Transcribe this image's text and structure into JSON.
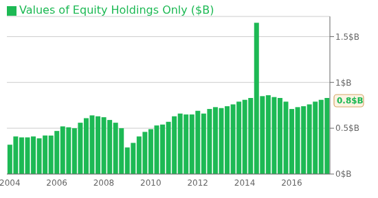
{
  "chart_data": {
    "type": "bar",
    "categories": [
      "2004",
      null,
      null,
      null,
      null,
      null,
      null,
      null,
      "2006",
      null,
      null,
      null,
      null,
      null,
      null,
      null,
      "2008",
      null,
      null,
      null,
      null,
      null,
      null,
      null,
      "2010",
      null,
      null,
      null,
      null,
      null,
      null,
      null,
      "2012",
      null,
      null,
      null,
      null,
      null,
      null,
      null,
      "2014",
      null,
      null,
      null,
      null,
      null,
      null,
      null,
      "2016",
      null,
      null,
      null,
      null,
      null,
      null
    ],
    "series": [
      {
        "name": "Values of Equity Holdings Only ($B)",
        "color": "#1db954",
        "values": [
          0.32,
          0.41,
          0.4,
          0.4,
          0.41,
          0.39,
          0.42,
          0.42,
          0.47,
          0.52,
          0.51,
          0.5,
          0.56,
          0.61,
          0.64,
          0.63,
          0.62,
          0.59,
          0.56,
          0.5,
          0.29,
          0.34,
          0.41,
          0.46,
          0.49,
          0.53,
          0.54,
          0.57,
          0.63,
          0.66,
          0.65,
          0.65,
          0.69,
          0.66,
          0.71,
          0.73,
          0.72,
          0.74,
          0.76,
          0.79,
          0.81,
          0.83,
          1.65,
          0.85,
          0.86,
          0.84,
          0.83,
          0.79,
          0.71,
          0.73,
          0.74,
          0.76,
          0.79,
          0.81,
          0.83
        ]
      }
    ],
    "ylim": [
      0,
      1.72
    ],
    "yticks": [
      {
        "value": 0,
        "label": "0$B"
      },
      {
        "value": 0.5,
        "label": "0.5$B"
      },
      {
        "value": 1.0,
        "label": "1$B"
      },
      {
        "value": 1.5,
        "label": "1.5$B"
      }
    ],
    "grid": true,
    "legend": "upper left",
    "annotations": [
      {
        "label": "0.8$B",
        "value": 0.8
      }
    ]
  }
}
